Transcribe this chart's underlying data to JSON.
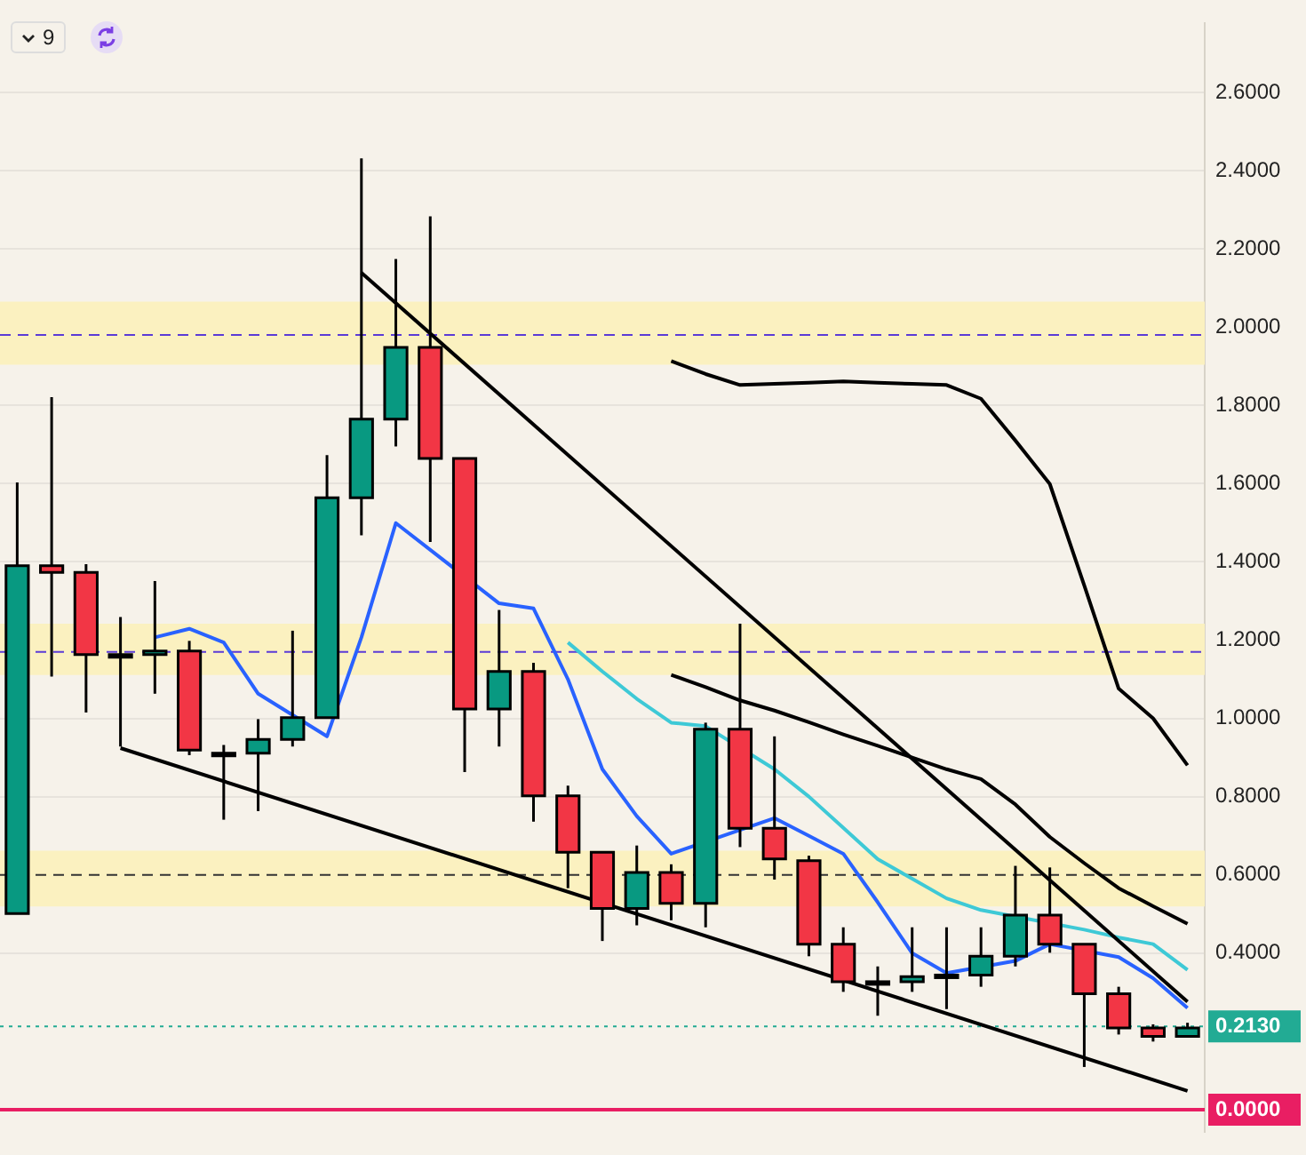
{
  "chart_data": {
    "type": "candlestick",
    "annotations": [
      "9"
    ],
    "categories": [
      null,
      null,
      null,
      null,
      null,
      null,
      null,
      null,
      null,
      null,
      null,
      null,
      null,
      null,
      null,
      null,
      null,
      null,
      null,
      null,
      null,
      null,
      null,
      null,
      null,
      null,
      null,
      null,
      null,
      null,
      null,
      null,
      null,
      null,
      null
    ],
    "ohlc": [
      [
        0.501,
        1.603,
        0.5,
        1.39
      ],
      [
        1.39,
        1.821,
        1.107,
        1.373
      ],
      [
        1.373,
        1.394,
        1.015,
        1.163
      ],
      [
        1.163,
        1.259,
        0.928,
        1.163
      ],
      [
        1.163,
        1.351,
        1.063,
        1.172
      ],
      [
        1.172,
        1.198,
        0.906,
        0.919
      ],
      [
        0.911,
        0.932,
        0.741,
        0.911
      ],
      [
        0.911,
        0.998,
        0.763,
        0.946
      ],
      [
        0.946,
        1.224,
        0.928,
        1.002
      ],
      [
        1.002,
        1.673,
        1.002,
        1.564
      ],
      [
        1.564,
        2.431,
        1.468,
        1.765
      ],
      [
        1.765,
        2.174,
        1.695,
        1.948
      ],
      [
        1.948,
        2.283,
        1.451,
        1.664
      ],
      [
        1.664,
        1.664,
        0.863,
        1.024
      ],
      [
        1.024,
        1.277,
        0.928,
        1.12
      ],
      [
        1.12,
        1.142,
        0.736,
        0.802
      ],
      [
        0.802,
        0.828,
        0.566,
        0.658
      ],
      [
        0.658,
        0.658,
        0.431,
        0.514
      ],
      [
        0.514,
        0.675,
        0.471,
        0.606
      ],
      [
        0.606,
        0.627,
        0.484,
        0.527
      ],
      [
        0.527,
        0.989,
        0.466,
        0.972
      ],
      [
        0.972,
        1.242,
        0.671,
        0.719
      ],
      [
        0.719,
        0.954,
        0.588,
        0.641
      ],
      [
        0.636,
        0.649,
        0.392,
        0.423
      ],
      [
        0.423,
        0.466,
        0.301,
        0.327
      ],
      [
        0.327,
        0.366,
        0.24,
        0.327
      ],
      [
        0.327,
        0.466,
        0.301,
        0.34
      ],
      [
        0.344,
        0.466,
        0.257,
        0.344
      ],
      [
        0.344,
        0.466,
        0.314,
        0.392
      ],
      [
        0.392,
        0.623,
        0.366,
        0.497
      ],
      [
        0.497,
        0.619,
        0.401,
        0.423
      ],
      [
        0.423,
        0.423,
        0.109,
        0.296
      ],
      [
        0.296,
        0.314,
        0.192,
        0.209
      ],
      [
        0.209,
        0.218,
        0.174,
        0.187
      ],
      [
        0.187,
        0.222,
        0.187,
        0.209
      ]
    ],
    "colors": [
      "#089981",
      "#f23645",
      "#f23645",
      "#f23645",
      "#089981",
      "#f23645",
      "#f23645",
      "#089981",
      "#089981",
      "#089981",
      "#089981",
      "#089981",
      "#f23645",
      "#f23645",
      "#089981",
      "#f23645",
      "#f23645",
      "#f23645",
      "#089981",
      "#f23645",
      "#089981",
      "#f23645",
      "#f23645",
      "#f23645",
      "#f23645",
      "#f23645",
      "#089981",
      "#f23645",
      "#089981",
      "#089981",
      "#f23645",
      "#f23645",
      "#f23645",
      "#f23645",
      "#089981"
    ],
    "series": [
      {
        "type": "line",
        "color": "#000000",
        "values": [
          null,
          null,
          null,
          null,
          null,
          null,
          null,
          null,
          null,
          null,
          2.139,
          null,
          null,
          null,
          null,
          null,
          null,
          null,
          null,
          null,
          null,
          null,
          null,
          null,
          null,
          null,
          null,
          null,
          null,
          null,
          null,
          null,
          null,
          null,
          0.276
        ]
      },
      {
        "type": "line",
        "color": "#000000",
        "values": [
          null,
          null,
          null,
          0.924,
          null,
          null,
          null,
          null,
          null,
          null,
          null,
          null,
          null,
          null,
          null,
          null,
          null,
          null,
          null,
          null,
          null,
          null,
          null,
          null,
          null,
          null,
          null,
          null,
          null,
          null,
          null,
          null,
          null,
          null,
          0.048
        ]
      },
      {
        "type": "line",
        "color": "#2962ff",
        "values": [
          null,
          null,
          null,
          null,
          1.207,
          1.229,
          1.194,
          1.063,
          null,
          0.954,
          1.207,
          1.499,
          null,
          null,
          1.294,
          1.281,
          1.1,
          0.87,
          0.75,
          0.654,
          null,
          0.715,
          0.745,
          0.7,
          0.654,
          0.53,
          0.4,
          0.349,
          null,
          0.38,
          0.423,
          null,
          0.39,
          0.336,
          0.26
        ]
      },
      {
        "type": "line",
        "color": "#3ec9d6",
        "values": [
          null,
          null,
          null,
          null,
          null,
          null,
          null,
          null,
          null,
          null,
          null,
          null,
          null,
          null,
          null,
          null,
          1.194,
          1.12,
          1.05,
          0.989,
          0.98,
          null,
          0.87,
          0.8,
          0.72,
          0.64,
          0.59,
          0.54,
          0.51,
          null,
          null,
          0.46,
          0.44,
          0.423,
          0.357
        ]
      },
      {
        "type": "line",
        "color": "#000000",
        "values": [
          null,
          null,
          null,
          null,
          null,
          null,
          null,
          null,
          null,
          null,
          null,
          null,
          null,
          null,
          null,
          null,
          null,
          null,
          null,
          1.111,
          1.08,
          1.046,
          1.02,
          0.99,
          0.959,
          0.93,
          0.9,
          0.87,
          0.845,
          0.78,
          0.697,
          0.63,
          0.566,
          0.52,
          0.475
        ]
      },
      {
        "type": "line",
        "color": "#000000",
        "values": [
          null,
          null,
          null,
          null,
          null,
          null,
          null,
          null,
          null,
          null,
          null,
          null,
          null,
          null,
          null,
          null,
          null,
          null,
          null,
          1.913,
          1.88,
          1.852,
          1.855,
          1.858,
          1.861,
          1.858,
          1.855,
          1.852,
          1.817,
          1.71,
          1.599,
          1.34,
          1.076,
          1.0,
          0.88
        ]
      }
    ],
    "bands": [
      {
        "axis": "y",
        "from": 1.904,
        "to": 2.065,
        "color": "#fbf1c0"
      },
      {
        "axis": "y",
        "from": 1.111,
        "to": 1.242,
        "color": "#fbf1c0"
      },
      {
        "axis": "y",
        "from": 0.519,
        "to": 0.662,
        "color": "#fbf1c0"
      }
    ],
    "ref_lines": [
      {
        "axis": "y",
        "value": 1.98,
        "color": "#5b3bd6",
        "line_style": "dashed"
      },
      {
        "axis": "y",
        "value": 1.17,
        "color": "#5b3bd6",
        "line_style": "dashed"
      },
      {
        "axis": "y",
        "value": 0.6,
        "color": "#333333",
        "line_style": "dashed"
      },
      {
        "axis": "y",
        "value": 0.213,
        "label": "0.2130",
        "color": "#22ab94",
        "line_style": "dotted"
      },
      {
        "axis": "y",
        "value": 0,
        "label": "0.0000",
        "color": "#e91e63",
        "line_style": "solid"
      }
    ],
    "ylim": [
      -0.056,
      2.776
    ],
    "yticks": [
      {
        "value": 0.4,
        "label": "0.4000"
      },
      {
        "value": 0.6,
        "label": "0.6000"
      },
      {
        "value": 0.8,
        "label": "0.8000"
      },
      {
        "value": 1,
        "label": "1.0000"
      },
      {
        "value": 1.2,
        "label": "1.2000"
      },
      {
        "value": 1.4,
        "label": "1.4000"
      },
      {
        "value": 1.6,
        "label": "1.6000"
      },
      {
        "value": 1.8,
        "label": "1.8000"
      },
      {
        "value": 2,
        "label": "2.0000"
      },
      {
        "value": 2.2,
        "label": "2.2000"
      },
      {
        "value": 2.4,
        "label": "2.4000"
      },
      {
        "value": 2.6,
        "label": "2.6000"
      }
    ],
    "tick_labels": "y",
    "grid": "y",
    "legend": false
  }
}
